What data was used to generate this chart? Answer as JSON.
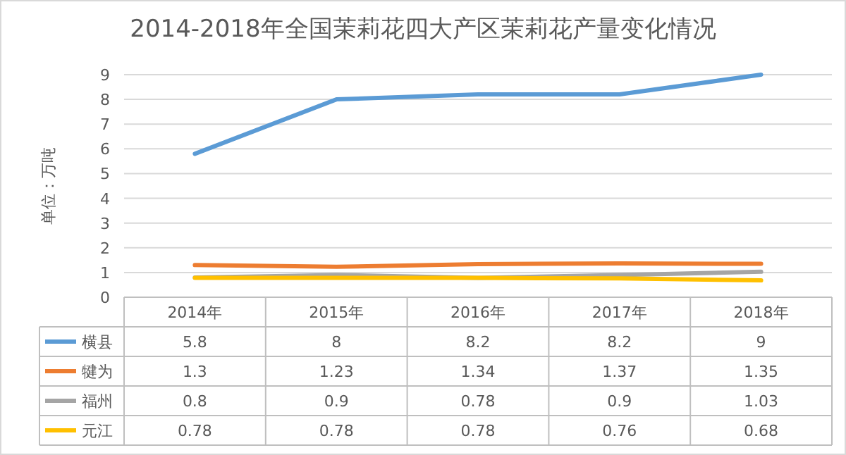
{
  "chart_data": {
    "type": "line",
    "title": "2014-2018年全国茉莉花四大产区茉莉花产量变化情况",
    "ylabel": "单位：万吨",
    "categories": [
      "2014年",
      "2015年",
      "2016年",
      "2017年",
      "2018年"
    ],
    "series": [
      {
        "name": "横县",
        "color": "#5b9bd5",
        "values": [
          5.8,
          8,
          8.2,
          8.2,
          9
        ]
      },
      {
        "name": "犍为",
        "color": "#ed7d31",
        "values": [
          1.3,
          1.23,
          1.34,
          1.37,
          1.35
        ]
      },
      {
        "name": "福州",
        "color": "#a5a5a5",
        "values": [
          0.8,
          0.9,
          0.78,
          0.9,
          1.03
        ]
      },
      {
        "name": "元江",
        "color": "#ffc000",
        "values": [
          0.78,
          0.78,
          0.78,
          0.76,
          0.68
        ]
      }
    ],
    "ylim": [
      0,
      9
    ],
    "yticks": [
      0,
      1,
      2,
      3,
      4,
      5,
      6,
      7,
      8,
      9
    ],
    "grid": "y",
    "legend": "bottom",
    "data_labels": true,
    "marker": "none",
    "line_style": "solid"
  }
}
